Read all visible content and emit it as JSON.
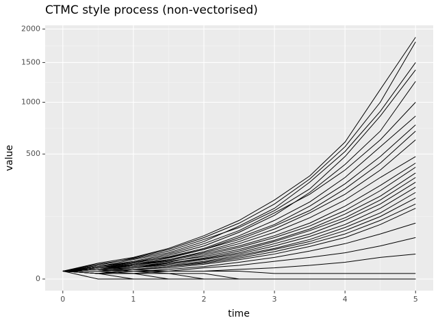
{
  "chart_data": {
    "type": "line",
    "title": "CTMC style process (non-vectorised)",
    "x_label": "time",
    "y_label": "value",
    "x": [
      0,
      0.5,
      1,
      1.5,
      2,
      2.5,
      3,
      3.5,
      4,
      4.5,
      5
    ],
    "xlim": [
      -0.25,
      5.25
    ],
    "xticks": [
      0,
      1,
      2,
      3,
      4,
      5
    ],
    "ylim": [
      0,
      2060
    ],
    "yticks": [
      0,
      500,
      1000,
      1500,
      2000
    ],
    "y_scale": "sqrt",
    "grid": true,
    "line_color": "#000000",
    "series": [
      {
        "values": [
          2,
          8,
          15,
          30,
          60,
          110,
          200,
          340,
          600,
          1150,
          1870
        ]
      },
      {
        "values": [
          2,
          6,
          14,
          28,
          55,
          100,
          180,
          320,
          560,
          1000,
          1800
        ]
      },
      {
        "values": [
          2,
          5,
          12,
          22,
          45,
          90,
          160,
          300,
          520,
          900,
          1500
        ]
      },
      {
        "values": [
          2,
          7,
          13,
          25,
          50,
          85,
          150,
          260,
          480,
          850,
          1400
        ]
      },
      {
        "values": [
          2,
          4,
          9,
          18,
          35,
          70,
          130,
          240,
          420,
          700,
          1250
        ]
      },
      {
        "values": [
          2,
          5,
          10,
          20,
          40,
          75,
          140,
          230,
          380,
          620,
          1000
        ]
      },
      {
        "values": [
          2,
          4,
          8,
          16,
          30,
          60,
          110,
          190,
          330,
          560,
          850
        ]
      },
      {
        "values": [
          2,
          3,
          7,
          14,
          28,
          55,
          95,
          170,
          290,
          480,
          760
        ]
      },
      {
        "values": [
          2,
          5,
          9,
          15,
          28,
          50,
          90,
          150,
          260,
          430,
          700
        ]
      },
      {
        "values": [
          2,
          3,
          6,
          12,
          24,
          45,
          80,
          140,
          230,
          380,
          620
        ]
      },
      {
        "values": [
          2,
          4,
          7,
          12,
          22,
          40,
          70,
          120,
          200,
          330,
          480
        ]
      },
      {
        "values": [
          2,
          3,
          6,
          11,
          20,
          35,
          60,
          100,
          170,
          280,
          430
        ]
      },
      {
        "values": [
          2,
          3,
          5,
          9,
          18,
          32,
          55,
          90,
          150,
          250,
          400
        ]
      },
      {
        "values": [
          2,
          4,
          6,
          10,
          16,
          28,
          48,
          80,
          135,
          220,
          360
        ]
      },
      {
        "values": [
          2,
          2,
          4,
          8,
          14,
          25,
          45,
          75,
          120,
          200,
          330
        ]
      },
      {
        "values": [
          2,
          3,
          5,
          8,
          13,
          22,
          40,
          65,
          110,
          180,
          300
        ]
      },
      {
        "values": [
          2,
          2,
          4,
          7,
          12,
          20,
          35,
          58,
          95,
          160,
          270
        ]
      },
      {
        "values": [
          2,
          3,
          4,
          6,
          10,
          18,
          30,
          50,
          85,
          140,
          240
        ]
      },
      {
        "values": [
          2,
          2,
          3,
          5,
          9,
          16,
          28,
          45,
          75,
          125,
          210
        ]
      },
      {
        "values": [
          2,
          1,
          3,
          5,
          8,
          14,
          24,
          40,
          65,
          110,
          180
        ]
      },
      {
        "values": [
          2,
          2,
          3,
          4,
          7,
          12,
          20,
          34,
          55,
          95,
          160
        ]
      },
      {
        "values": [
          2,
          1,
          2,
          3,
          5,
          9,
          15,
          25,
          40,
          65,
          100
        ]
      },
      {
        "values": [
          2,
          1,
          2,
          2,
          4,
          6,
          10,
          15,
          22,
          35,
          55
        ]
      },
      {
        "values": [
          2,
          1,
          1,
          2,
          2,
          3,
          4,
          6,
          9,
          15,
          20
        ]
      },
      {
        "values": [
          2,
          1,
          1,
          0,
          0,
          0,
          0,
          0,
          0,
          0,
          0
        ]
      },
      {
        "values": [
          2,
          0,
          0,
          0,
          0,
          0,
          0,
          0,
          0,
          0,
          0
        ]
      },
      {
        "values": [
          2,
          1,
          0,
          0,
          0,
          0,
          0,
          0,
          0,
          0,
          0
        ]
      },
      {
        "values": [
          2,
          2,
          1,
          1,
          0,
          0,
          0,
          0,
          0,
          0,
          0
        ]
      },
      {
        "values": [
          2,
          3,
          2,
          1,
          1,
          0,
          0,
          0,
          0,
          0,
          0
        ]
      },
      {
        "values": [
          2,
          2,
          3,
          2,
          2,
          2,
          1,
          1,
          1,
          1,
          1
        ]
      }
    ]
  }
}
